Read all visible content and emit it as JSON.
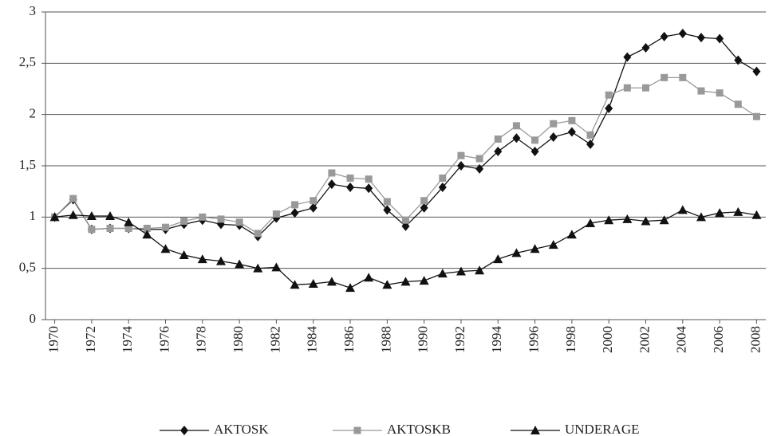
{
  "chart_data": {
    "type": "line",
    "x": [
      1970,
      1971,
      1972,
      1973,
      1974,
      1975,
      1976,
      1977,
      1978,
      1979,
      1980,
      1981,
      1982,
      1983,
      1984,
      1985,
      1986,
      1987,
      1988,
      1989,
      1990,
      1991,
      1992,
      1993,
      1994,
      1995,
      1996,
      1997,
      1998,
      1999,
      2000,
      2001,
      2002,
      2003,
      2004,
      2005,
      2006,
      2007,
      2008
    ],
    "xlim": [
      1969.5,
      2008.5
    ],
    "xticks": [
      1970,
      1972,
      1974,
      1976,
      1978,
      1980,
      1982,
      1984,
      1986,
      1988,
      1990,
      1992,
      1994,
      1996,
      1998,
      2000,
      2002,
      2004,
      2006,
      2008
    ],
    "ylim": [
      0,
      3
    ],
    "yticks": [
      0,
      {
        "value": 0.5,
        "label": "0,5"
      },
      1,
      {
        "value": 1.5,
        "label": "1,5"
      },
      2,
      {
        "value": 2.5,
        "label": "2,5"
      },
      3
    ],
    "grid": true,
    "legend": "bottom",
    "series": [
      {
        "name": "AKTOSK",
        "color": "#111111",
        "marker": "diamond",
        "values": [
          1.0,
          1.17,
          0.88,
          0.89,
          0.89,
          0.88,
          0.88,
          0.93,
          0.97,
          0.93,
          0.92,
          0.81,
          0.99,
          1.04,
          1.09,
          1.32,
          1.29,
          1.28,
          1.07,
          0.91,
          1.09,
          1.29,
          1.5,
          1.47,
          1.64,
          1.77,
          1.64,
          1.78,
          1.83,
          1.71,
          2.06,
          2.56,
          2.65,
          2.76,
          2.79,
          2.75,
          2.74,
          2.53,
          2.42
        ]
      },
      {
        "name": "AKTOSKB",
        "color": "#999999",
        "marker": "square",
        "values": [
          1.0,
          1.18,
          0.88,
          0.89,
          0.89,
          0.89,
          0.9,
          0.96,
          1.0,
          0.98,
          0.95,
          0.84,
          1.03,
          1.12,
          1.16,
          1.43,
          1.38,
          1.37,
          1.15,
          0.97,
          1.16,
          1.38,
          1.6,
          1.57,
          1.76,
          1.89,
          1.75,
          1.91,
          1.94,
          1.8,
          2.19,
          2.26,
          2.26,
          2.36,
          2.36,
          2.23,
          2.21,
          2.1,
          1.98
        ]
      },
      {
        "name": "UNDERAGE",
        "color": "#111111",
        "marker": "triangle",
        "values": [
          1.0,
          1.02,
          1.01,
          1.01,
          0.95,
          0.83,
          0.69,
          0.63,
          0.59,
          0.57,
          0.54,
          0.5,
          0.51,
          0.34,
          0.35,
          0.37,
          0.31,
          0.41,
          0.34,
          0.37,
          0.38,
          0.45,
          0.47,
          0.48,
          0.59,
          0.65,
          0.69,
          0.73,
          0.83,
          0.94,
          0.97,
          0.98,
          0.96,
          0.97,
          1.07,
          1.0,
          1.04,
          1.05,
          1.02
        ]
      }
    ]
  }
}
